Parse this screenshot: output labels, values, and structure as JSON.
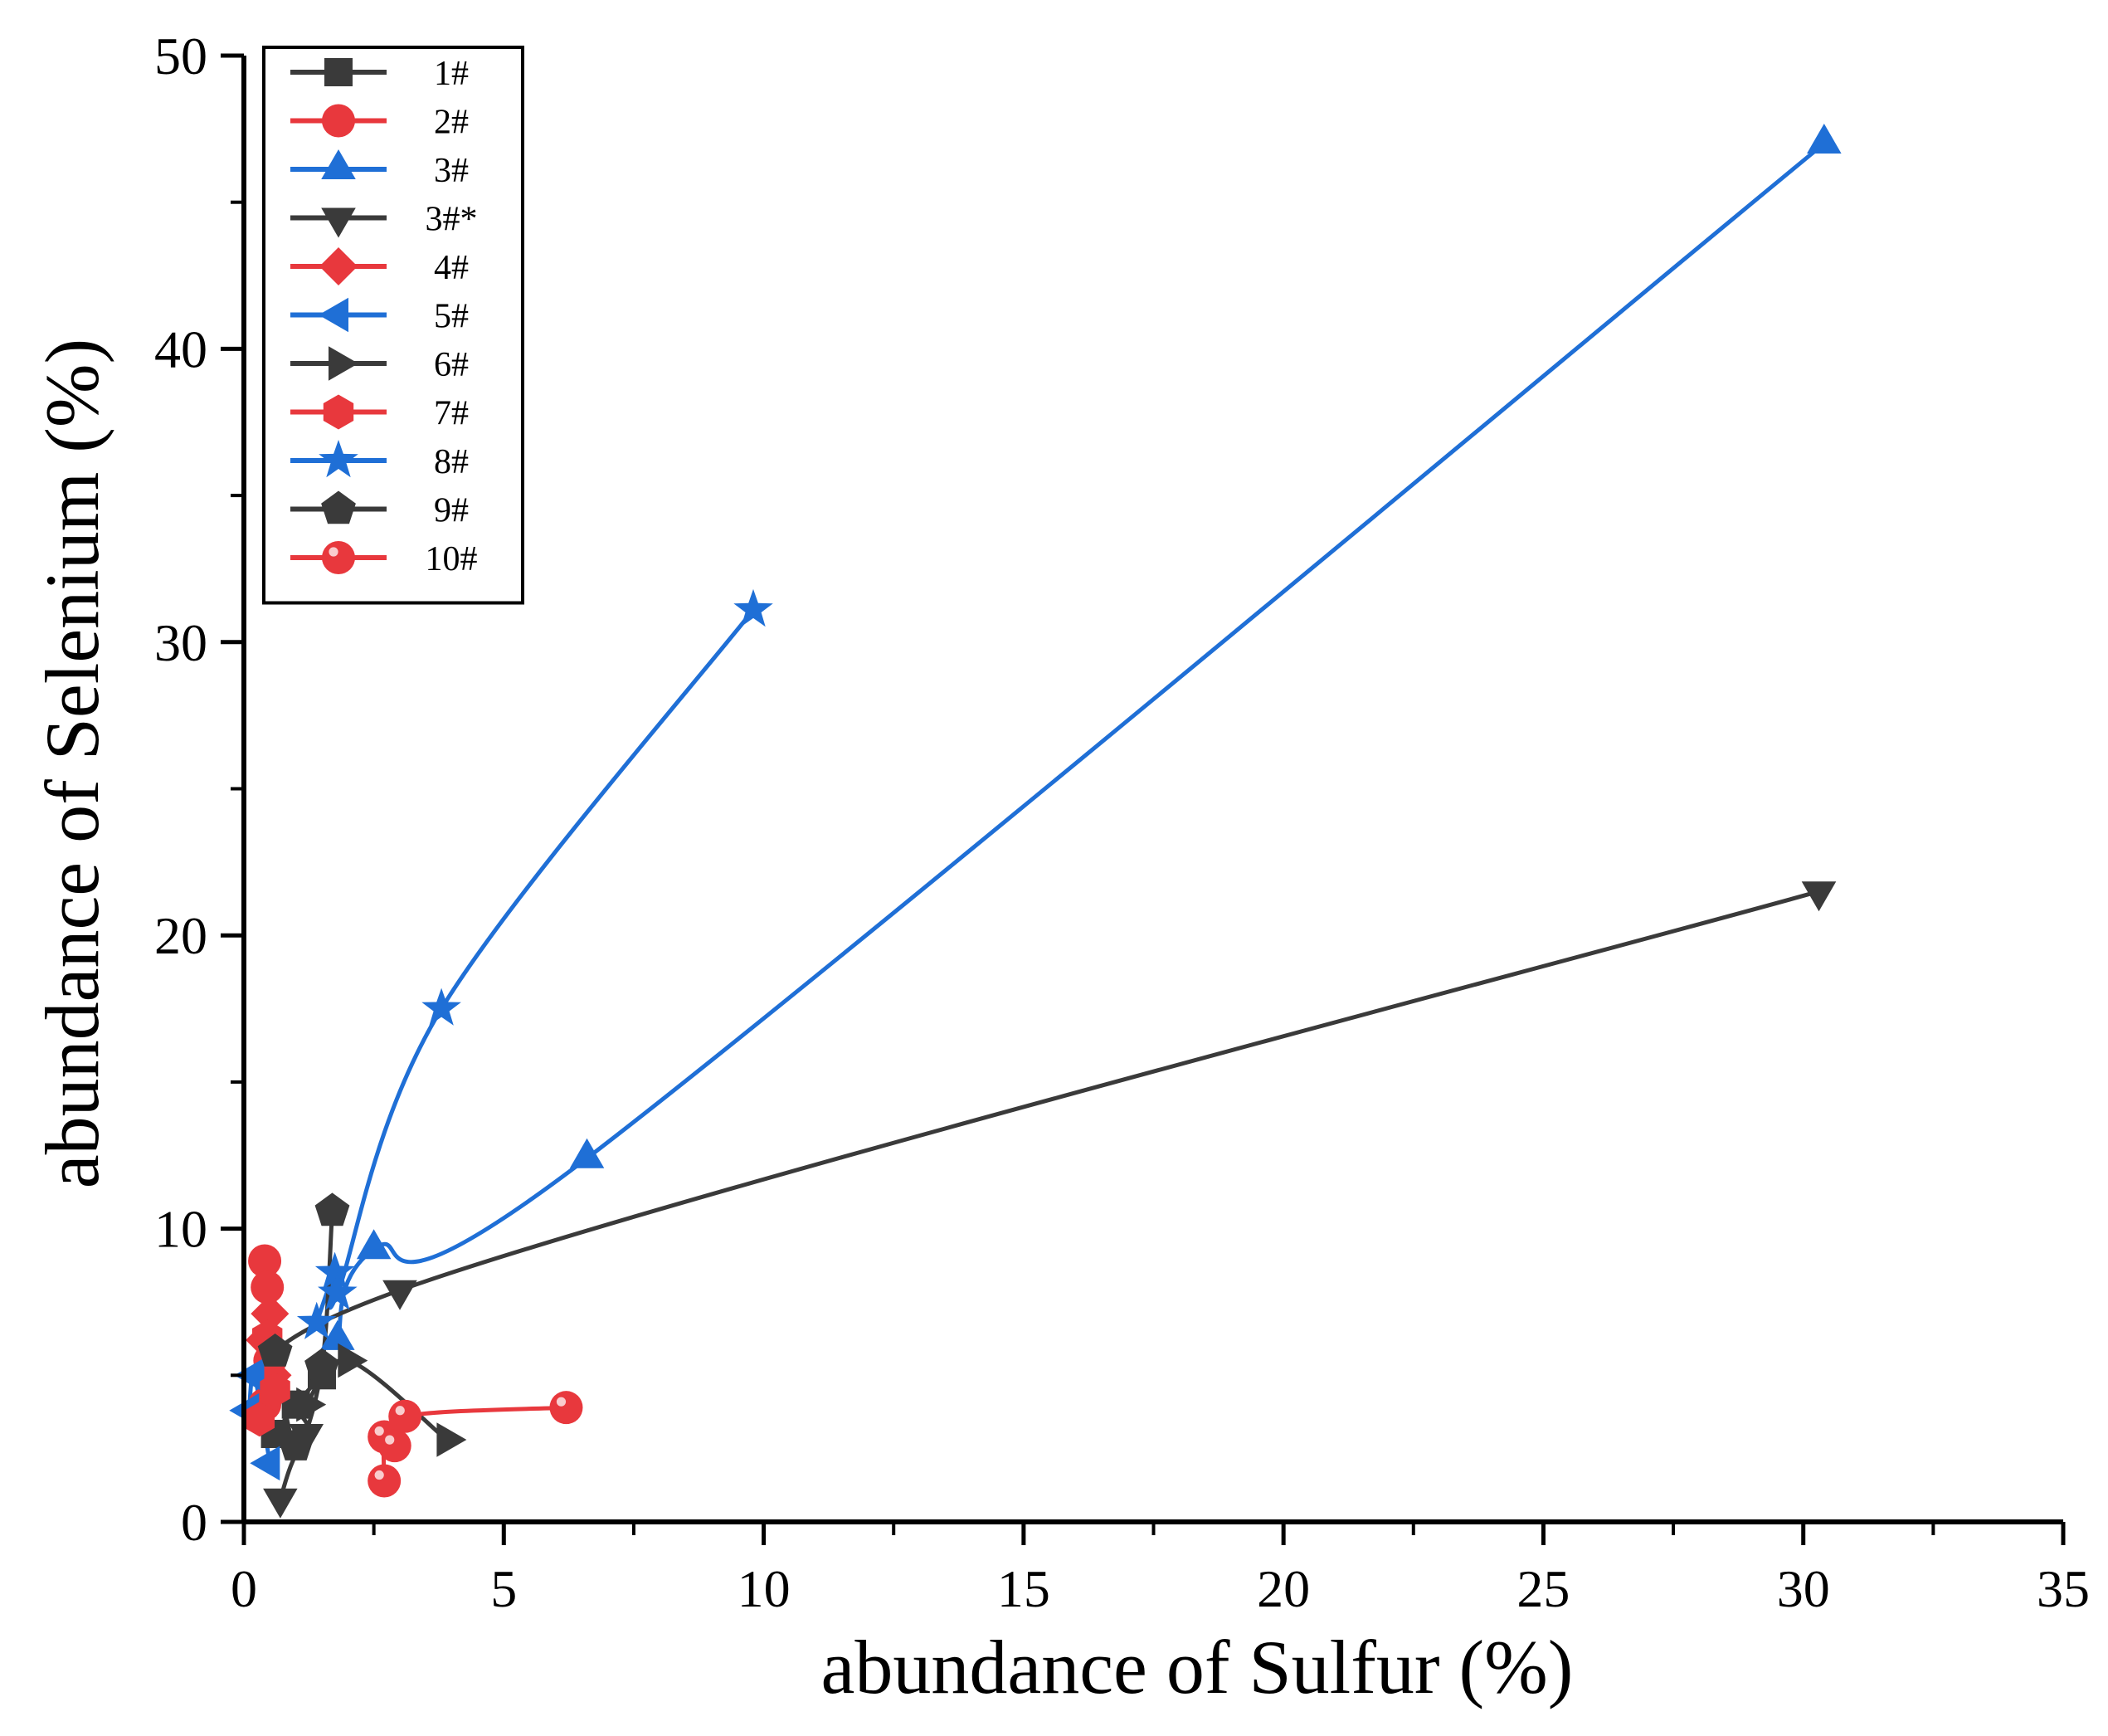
{
  "chart_data": {
    "type": "scatter",
    "title": "",
    "xlabel": "abundance of Sulfur (%)",
    "ylabel": "abundance of Selenium (%)",
    "xlim": [
      0,
      35
    ],
    "ylim": [
      0,
      50
    ],
    "x_ticks": [
      "0",
      "5",
      "10",
      "15",
      "20",
      "25",
      "30",
      "35"
    ],
    "y_ticks": [
      "0",
      "10",
      "20",
      "30",
      "40",
      "50"
    ],
    "grid": false,
    "legend_position": "top-left",
    "series": [
      {
        "name": "1#",
        "marker": "square",
        "color": "#3a3a3a",
        "points": [
          [
            0.6,
            3.0
          ],
          [
            1.0,
            4.0
          ],
          [
            1.5,
            5.0
          ]
        ]
      },
      {
        "name": "2#",
        "marker": "circle",
        "color": "#e8383d",
        "points": [
          [
            0.4,
            8.9
          ],
          [
            0.45,
            8.0
          ],
          [
            0.5,
            5.5
          ],
          [
            0.4,
            4.0
          ]
        ]
      },
      {
        "name": "3#",
        "marker": "triangle-up",
        "color": "#1f6fd6",
        "points": [
          [
            1.8,
            6.2
          ],
          [
            2.5,
            9.3
          ],
          [
            6.6,
            12.4
          ],
          [
            30.4,
            47.0
          ]
        ]
      },
      {
        "name": "3#*",
        "marker": "triangle-down",
        "color": "#3a3a3a",
        "points": [
          [
            0.7,
            0.8
          ],
          [
            1.2,
            3.0
          ],
          [
            3.0,
            7.9
          ],
          [
            30.3,
            21.5
          ]
        ]
      },
      {
        "name": "4#",
        "marker": "diamond",
        "color": "#e8383d",
        "points": [
          [
            0.4,
            6.2
          ],
          [
            0.5,
            7.1
          ],
          [
            0.55,
            5.0
          ]
        ]
      },
      {
        "name": "5#",
        "marker": "triangle-left",
        "color": "#1f6fd6",
        "points": [
          [
            0.1,
            3.8
          ],
          [
            0.2,
            5.0
          ],
          [
            0.5,
            2.0
          ]
        ]
      },
      {
        "name": "6#",
        "marker": "triangle-right",
        "color": "#3a3a3a",
        "points": [
          [
            1.2,
            4.0
          ],
          [
            2.0,
            5.5
          ],
          [
            3.9,
            2.8
          ]
        ]
      },
      {
        "name": "7#",
        "marker": "hexagon",
        "color": "#e8383d",
        "points": [
          [
            0.3,
            3.5
          ],
          [
            0.45,
            6.3
          ],
          [
            0.6,
            4.5
          ]
        ]
      },
      {
        "name": "8#",
        "marker": "star",
        "color": "#1f6fd6",
        "points": [
          [
            1.4,
            6.8
          ],
          [
            1.75,
            8.5
          ],
          [
            1.8,
            7.8
          ],
          [
            3.8,
            17.5
          ],
          [
            9.8,
            31.1
          ]
        ]
      },
      {
        "name": "9#",
        "marker": "pentagon",
        "color": "#3a3a3a",
        "points": [
          [
            0.6,
            5.8
          ],
          [
            1.0,
            2.6
          ],
          [
            1.5,
            5.3
          ],
          [
            1.7,
            10.6
          ]
        ]
      },
      {
        "name": "10#",
        "marker": "ball",
        "color": "#e8383d",
        "points": [
          [
            2.7,
            1.4
          ],
          [
            2.7,
            2.9
          ],
          [
            2.9,
            2.6
          ],
          [
            3.1,
            3.6
          ],
          [
            6.2,
            3.9
          ]
        ]
      }
    ]
  }
}
